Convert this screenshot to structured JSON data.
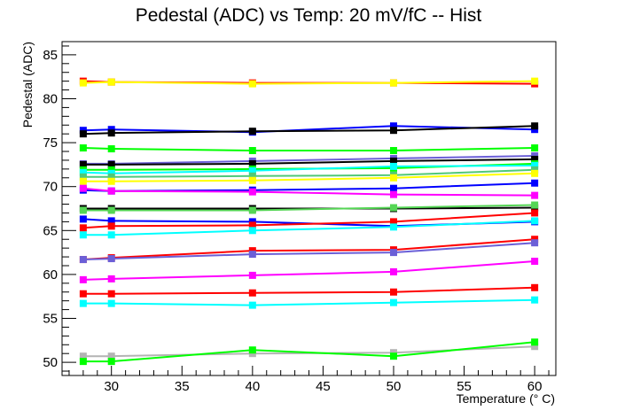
{
  "chart_data": {
    "type": "line",
    "title": "Pedestal (ADC) vs Temp: 20 mV/fC -- Hist",
    "xlabel": "Temperature (° C)",
    "ylabel": "Pedestal (ADC)",
    "xlim": [
      26.5,
      61.5
    ],
    "ylim": [
      48.5,
      86.5
    ],
    "x_ticks": [
      30,
      35,
      40,
      45,
      50,
      55,
      60
    ],
    "y_ticks": [
      50,
      55,
      60,
      65,
      70,
      75,
      80,
      85
    ],
    "x_tick_labels": [
      "30",
      "35",
      "40",
      "45",
      "50",
      "55",
      "60"
    ],
    "y_tick_labels": [
      "50",
      "55",
      "60",
      "65",
      "70",
      "75",
      "80",
      "85"
    ],
    "grid": false,
    "legend": "none",
    "marker": "square",
    "x": [
      28,
      30,
      40,
      50,
      60
    ],
    "series": [
      {
        "color": "#ff0000",
        "values": [
          82.0,
          81.9,
          81.8,
          81.8,
          81.7
        ]
      },
      {
        "color": "#ffff00",
        "values": [
          81.8,
          81.9,
          81.7,
          81.8,
          82.0
        ]
      },
      {
        "color": "#0000ff",
        "values": [
          76.4,
          76.5,
          76.2,
          76.9,
          76.5
        ]
      },
      {
        "color": "#000000",
        "values": [
          76.0,
          76.1,
          76.3,
          76.4,
          76.9
        ]
      },
      {
        "color": "#00ff00",
        "values": [
          74.4,
          74.3,
          74.1,
          74.1,
          74.4
        ]
      },
      {
        "color": "#6b5fd7",
        "values": [
          72.6,
          72.6,
          72.9,
          73.2,
          73.5
        ]
      },
      {
        "color": "#000000",
        "values": [
          72.5,
          72.5,
          72.6,
          72.9,
          73.1
        ]
      },
      {
        "color": "#00ff00",
        "values": [
          71.9,
          71.9,
          72.0,
          72.1,
          72.6
        ]
      },
      {
        "color": "#00ffff",
        "values": [
          71.6,
          71.5,
          71.8,
          72.3,
          72.4
        ]
      },
      {
        "color": "#50c878",
        "values": [
          71.1,
          71.1,
          71.2,
          71.3,
          71.9
        ]
      },
      {
        "color": "#ffff00",
        "values": [
          70.6,
          70.6,
          70.7,
          71.0,
          71.5
        ]
      },
      {
        "color": "#0000ff",
        "values": [
          69.6,
          69.5,
          69.6,
          69.8,
          70.4
        ]
      },
      {
        "color": "#ff00ff",
        "values": [
          69.8,
          69.5,
          69.4,
          69.1,
          69.0
        ]
      },
      {
        "color": "#000000",
        "values": [
          67.5,
          67.5,
          67.5,
          67.5,
          67.6
        ]
      },
      {
        "color": "#55d655",
        "values": [
          67.3,
          67.3,
          67.3,
          67.6,
          67.9
        ]
      },
      {
        "color": "#0000ff",
        "values": [
          66.3,
          66.1,
          66.0,
          65.5,
          66.0
        ]
      },
      {
        "color": "#ff0000",
        "values": [
          65.3,
          65.5,
          65.6,
          66.0,
          67.0
        ]
      },
      {
        "color": "#00ffff",
        "values": [
          64.5,
          64.5,
          65.0,
          65.4,
          66.1
        ]
      },
      {
        "color": "#ff0000",
        "values": [
          61.7,
          61.9,
          62.7,
          62.8,
          64.0
        ]
      },
      {
        "color": "#6b5fd7",
        "values": [
          61.7,
          61.8,
          62.3,
          62.5,
          63.6
        ]
      },
      {
        "color": "#ff00ff",
        "values": [
          59.4,
          59.5,
          59.9,
          60.3,
          61.5
        ]
      },
      {
        "color": "#ff0000",
        "values": [
          57.8,
          57.8,
          57.9,
          58.0,
          58.5
        ]
      },
      {
        "color": "#00ffff",
        "values": [
          56.7,
          56.7,
          56.5,
          56.8,
          57.1
        ]
      },
      {
        "color": "#b4b4b4",
        "values": [
          50.7,
          50.7,
          51.0,
          51.1,
          51.8
        ]
      },
      {
        "color": "#00ff00",
        "values": [
          50.1,
          50.1,
          51.4,
          50.7,
          52.3
        ]
      }
    ]
  }
}
